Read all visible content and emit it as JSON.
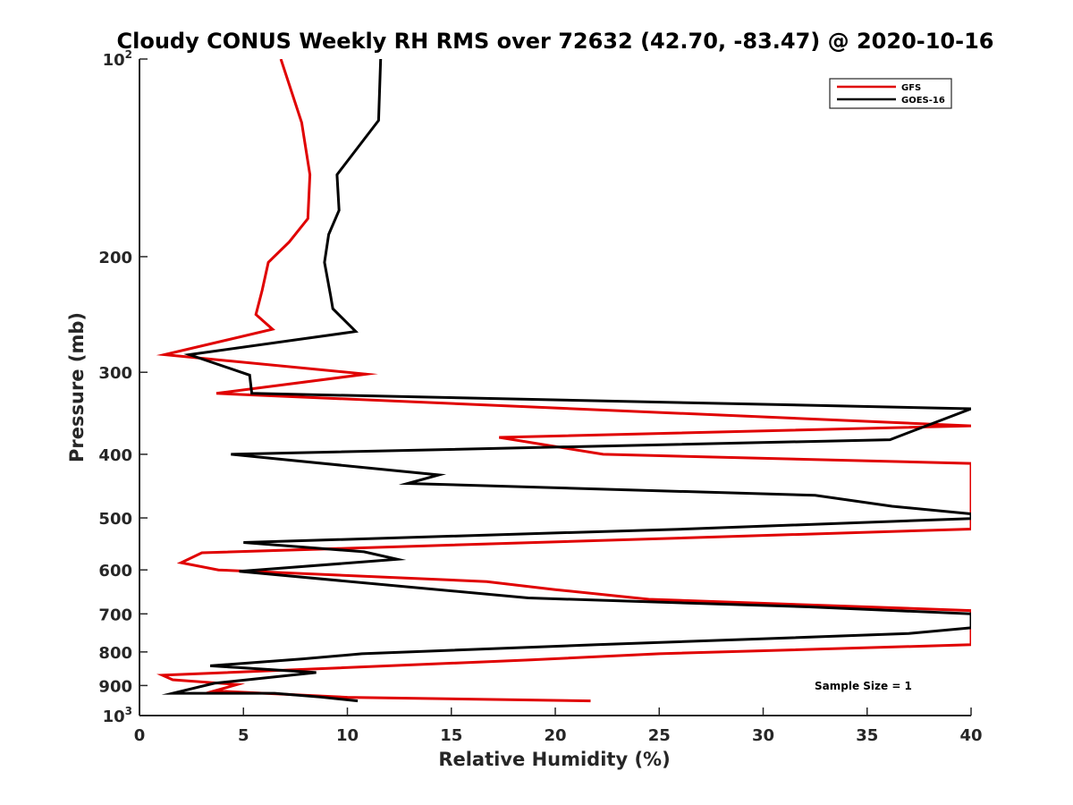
{
  "chart_data": {
    "type": "line",
    "title": "Cloudy CONUS Weekly RH RMS over 72632 (42.70, -83.47) @ 2020-10-16",
    "xlabel": "Relative Humidity (%)",
    "ylabel": "Pressure (mb)",
    "xlim": [
      0,
      40
    ],
    "ylim": [
      100,
      1000
    ],
    "y_scale": "log",
    "y_reversed": true,
    "x_ticks": [
      "0",
      "5",
      "10",
      "15",
      "20",
      "25",
      "30",
      "35",
      "40"
    ],
    "y_ticks": [
      {
        "value": 100,
        "base": "10",
        "sup": "2"
      },
      {
        "value": 200,
        "base": "200",
        "sup": ""
      },
      {
        "value": 300,
        "base": "300",
        "sup": ""
      },
      {
        "value": 400,
        "base": "400",
        "sup": ""
      },
      {
        "value": 500,
        "base": "500",
        "sup": ""
      },
      {
        "value": 600,
        "base": "600",
        "sup": ""
      },
      {
        "value": 700,
        "base": "700",
        "sup": ""
      },
      {
        "value": 800,
        "base": "800",
        "sup": ""
      },
      {
        "value": 900,
        "base": "900",
        "sup": ""
      },
      {
        "value": 1000,
        "base": "10",
        "sup": "3"
      }
    ],
    "legend_position": "top-right",
    "annotation": "Sample Size = 1",
    "series": [
      {
        "name": "GFS",
        "color": "#e00000",
        "points": [
          [
            6.8,
            100
          ],
          [
            7.8,
            125
          ],
          [
            8.2,
            150
          ],
          [
            8.1,
            175
          ],
          [
            7.2,
            190
          ],
          [
            6.2,
            204
          ],
          [
            5.9,
            225
          ],
          [
            5.6,
            245
          ],
          [
            6.4,
            258
          ],
          [
            1.2,
            282
          ],
          [
            10.9,
            302
          ],
          [
            3.7,
            323
          ],
          [
            40,
            362
          ],
          [
            17.3,
            377
          ],
          [
            22.3,
            400
          ],
          [
            40,
            413
          ],
          [
            40,
            520
          ],
          [
            3,
            565
          ],
          [
            2,
            585
          ],
          [
            3.8,
            600
          ],
          [
            16.7,
            625
          ],
          [
            20,
            643
          ],
          [
            24.5,
            665
          ],
          [
            40,
            692
          ],
          [
            40,
            780
          ],
          [
            25,
            805
          ],
          [
            18.7,
            823
          ],
          [
            1.1,
            868
          ],
          [
            1.6,
            882
          ],
          [
            4.7,
            897
          ],
          [
            3.6,
            917
          ],
          [
            10,
            938
          ],
          [
            21.7,
            950
          ]
        ]
      },
      {
        "name": "GOES-16",
        "color": "#000000",
        "points": [
          [
            11.6,
            100
          ],
          [
            11.5,
            124
          ],
          [
            9.5,
            150
          ],
          [
            9.6,
            170
          ],
          [
            9.1,
            185
          ],
          [
            8.9,
            204
          ],
          [
            9.2,
            230
          ],
          [
            9.3,
            240
          ],
          [
            10.4,
            260
          ],
          [
            2.4,
            282
          ],
          [
            5.3,
            303
          ],
          [
            5.4,
            323
          ],
          [
            40,
            341
          ],
          [
            36.1,
            380
          ],
          [
            4.4,
            400
          ],
          [
            14.4,
            430
          ],
          [
            12.9,
            443
          ],
          [
            32.5,
            462
          ],
          [
            36.2,
            480
          ],
          [
            40,
            493
          ],
          [
            40,
            501
          ],
          [
            26.2,
            520
          ],
          [
            5,
            545
          ],
          [
            10.8,
            563
          ],
          [
            12.4,
            578
          ],
          [
            4.8,
            603
          ],
          [
            18.7,
            662
          ],
          [
            32.2,
            683
          ],
          [
            40,
            700
          ],
          [
            40,
            735
          ],
          [
            37,
            750
          ],
          [
            22,
            780
          ],
          [
            10.7,
            805
          ],
          [
            7.8,
            820
          ],
          [
            3.4,
            840
          ],
          [
            4.7,
            845
          ],
          [
            8.5,
            860
          ],
          [
            3.6,
            893
          ],
          [
            1.6,
            925
          ],
          [
            6.5,
            925
          ],
          [
            8.7,
            937
          ],
          [
            10.5,
            950
          ]
        ]
      }
    ]
  }
}
